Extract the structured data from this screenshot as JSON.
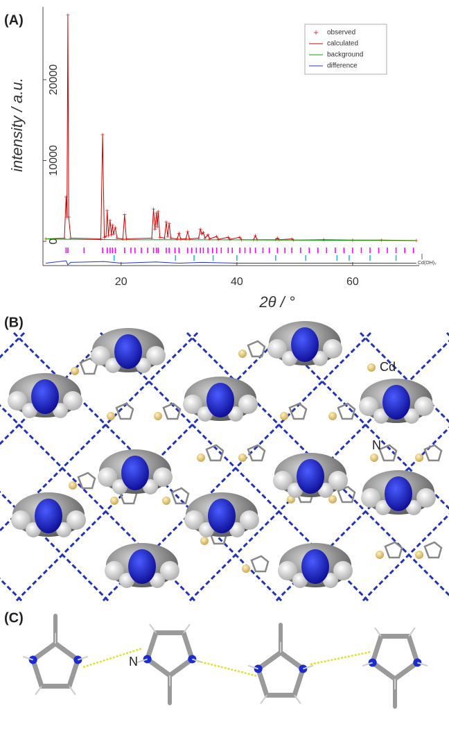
{
  "panel_labels": [
    "(A)",
    "(B)",
    "(C)"
  ],
  "structure_labels": {
    "b": [
      "Cd",
      "N"
    ],
    "c": [
      "N"
    ]
  },
  "chart_data": {
    "type": "line",
    "x_label": "2θ / °",
    "y_label": "intensity / a.u.",
    "xlim": [
      6.5,
      71.5
    ],
    "xticks": [
      20,
      40,
      60
    ],
    "ylim": [
      -3000,
      29000
    ],
    "yticks": [
      0,
      10000,
      20000
    ],
    "legend": "upper right",
    "x": [
      7,
      10.2,
      10.5,
      10.65,
      10.8,
      10.95,
      11.3,
      16.5,
      16.8,
      17.1,
      17.4,
      17.6,
      17.8,
      18.1,
      18.3,
      18.5,
      18.7,
      19.0,
      19.3,
      20.3,
      20.6,
      20.9,
      25.3,
      25.6,
      25.85,
      26.1,
      26.25,
      26.4,
      26.7,
      27.5,
      27.8,
      28.05,
      28.3,
      28.6,
      29.7,
      30.0,
      30.3,
      31.2,
      31.5,
      31.8,
      33.4,
      33.7,
      33.95,
      34.2,
      34.5,
      35.0,
      35.3,
      36.5,
      36.8,
      38.5,
      38.8,
      40.5,
      40.8,
      42.9,
      43.2,
      43.5,
      46.7,
      47.0,
      47.3,
      49.5,
      49.8,
      55,
      60,
      65,
      71
    ],
    "series": [
      {
        "name": "observed",
        "color": "#e04040",
        "marker": "+",
        "values": [
          300,
          400,
          5500,
          3000,
          28000,
          3000,
          400,
          300,
          13200,
          500,
          600,
          3800,
          700,
          2600,
          800,
          2000,
          900,
          1700,
          400,
          300,
          3300,
          300,
          400,
          4000,
          1500,
          3500,
          1800,
          3700,
          500,
          400,
          2400,
          600,
          2200,
          400,
          300,
          1000,
          300,
          300,
          1200,
          300,
          400,
          1500,
          900,
          1100,
          400,
          800,
          300,
          600,
          250,
          500,
          250,
          500,
          200,
          200,
          700,
          200,
          200,
          400,
          200,
          300,
          150,
          200,
          150,
          150,
          100
        ]
      },
      {
        "name": "calculated",
        "color": "#d00000",
        "values": [
          300,
          400,
          5500,
          3000,
          28000,
          3000,
          400,
          300,
          13200,
          500,
          600,
          3800,
          700,
          2600,
          800,
          2000,
          900,
          1700,
          400,
          300,
          3300,
          300,
          400,
          4000,
          1500,
          3500,
          1800,
          3700,
          500,
          400,
          2400,
          600,
          2200,
          400,
          300,
          1000,
          300,
          300,
          1200,
          300,
          400,
          1500,
          900,
          1100,
          400,
          800,
          300,
          600,
          250,
          500,
          250,
          500,
          200,
          200,
          700,
          200,
          200,
          400,
          200,
          300,
          150,
          200,
          150,
          150,
          100
        ]
      },
      {
        "name": "background",
        "color": "#00a000",
        "x": [
          7,
          10,
          20,
          30,
          40,
          50,
          60,
          71
        ],
        "values": [
          300,
          250,
          200,
          200,
          180,
          150,
          120,
          100
        ]
      },
      {
        "name": "difference",
        "color": "#2030d0",
        "x": [
          7,
          10.5,
          10.8,
          11.3,
          17,
          20,
          26,
          30,
          34,
          40,
          50,
          60,
          71
        ],
        "values": [
          -2700,
          -2400,
          -2900,
          -2600,
          -2500,
          -2700,
          -2550,
          -2700,
          -2600,
          -2700,
          -2700,
          -2700,
          -2700
        ]
      }
    ],
    "reflections": [
      {
        "color": "#ff00ff",
        "x": [
          10.5,
          10.8,
          13.6,
          16.8,
          17.6,
          18.1,
          18.5,
          19.0,
          20.6,
          21.7,
          22.4,
          23.5,
          24.6,
          25.6,
          26.1,
          26.4,
          27.8,
          28.3,
          29.3,
          30.0,
          31.5,
          32.2,
          33.0,
          33.7,
          34.2,
          35.0,
          35.8,
          36.5,
          37.3,
          38.5,
          39.2,
          40.5,
          41.4,
          42.3,
          43.2,
          44.5,
          45.6,
          47.0,
          48.3,
          49.5,
          51,
          52.5,
          54,
          55.5,
          57,
          58.5,
          60,
          61.5,
          63,
          64.5,
          66,
          67.5,
          69,
          70.5
        ]
      },
      {
        "color": "#20b8e0",
        "label": "Cd(OH)₂",
        "x": [
          18.8,
          29.4,
          32.6,
          35.9,
          40,
          46.7,
          51.9,
          57.3,
          59.4,
          63,
          67.5
        ]
      }
    ]
  }
}
